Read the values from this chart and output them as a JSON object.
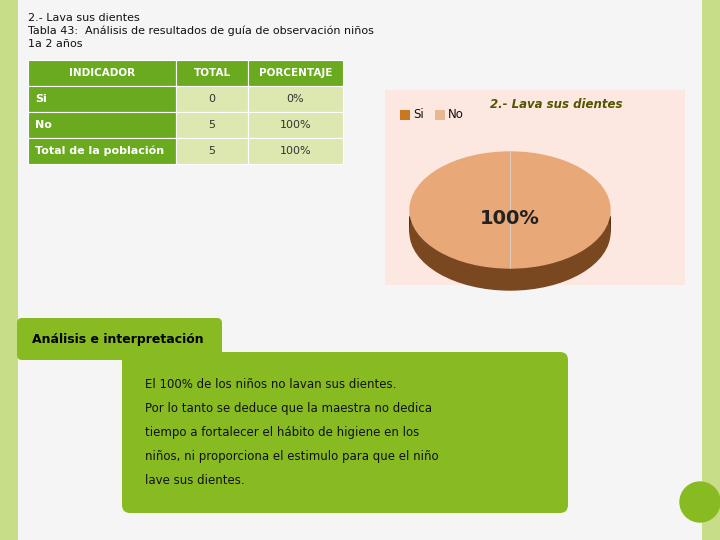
{
  "title_line1": "2.- Lava sus dientes",
  "title_line2": "Tabla 43:  Análisis de resultados de guía de observación niños",
  "title_line3": "1a 2 años",
  "table_headers": [
    "INDICADOR",
    "TOTAL",
    "PORCENTAJE"
  ],
  "table_rows": [
    [
      "Si",
      "0",
      "0%"
    ],
    [
      "No",
      "5",
      "100%"
    ],
    [
      "Total de la población",
      "5",
      "100%"
    ]
  ],
  "header_bg": "#6aaa1e",
  "header_text": "#ffffff",
  "row_label_bg": "#6aaa1e",
  "row_label_text": "#ffffff",
  "row_data_bg": "#dce8b0",
  "row_data_text": "#333333",
  "chart_title": "2.- Lava sus dientes",
  "pie_top_color": "#e8a878",
  "pie_side_color": "#7a4820",
  "pie_bg": "#fce8e0",
  "legend_si_color": "#c87820",
  "legend_no_color": "#e8b890",
  "analysis_header": "Análisis e interpretación",
  "analysis_header_bg": "#88bb22",
  "analysis_header_text": "#000000",
  "analysis_text_line1": "El 100% de los niños no lavan sus dientes.",
  "analysis_text_line2": "Por lo tanto se deduce que la maestra no dedica",
  "analysis_text_line3": "tiempo a fortalecer el hábito de higiene en los",
  "analysis_text_line4": "niños, ni proporciona el estimulo para que el niño",
  "analysis_text_line5": "lave sus dientes.",
  "analysis_text_bg": "#88bb22",
  "analysis_text_color": "#111111",
  "bg_color": "#f5f5f5",
  "left_border_color": "#c8dd88",
  "right_border_color": "#c8dd88",
  "circle_color": "#88bb22"
}
